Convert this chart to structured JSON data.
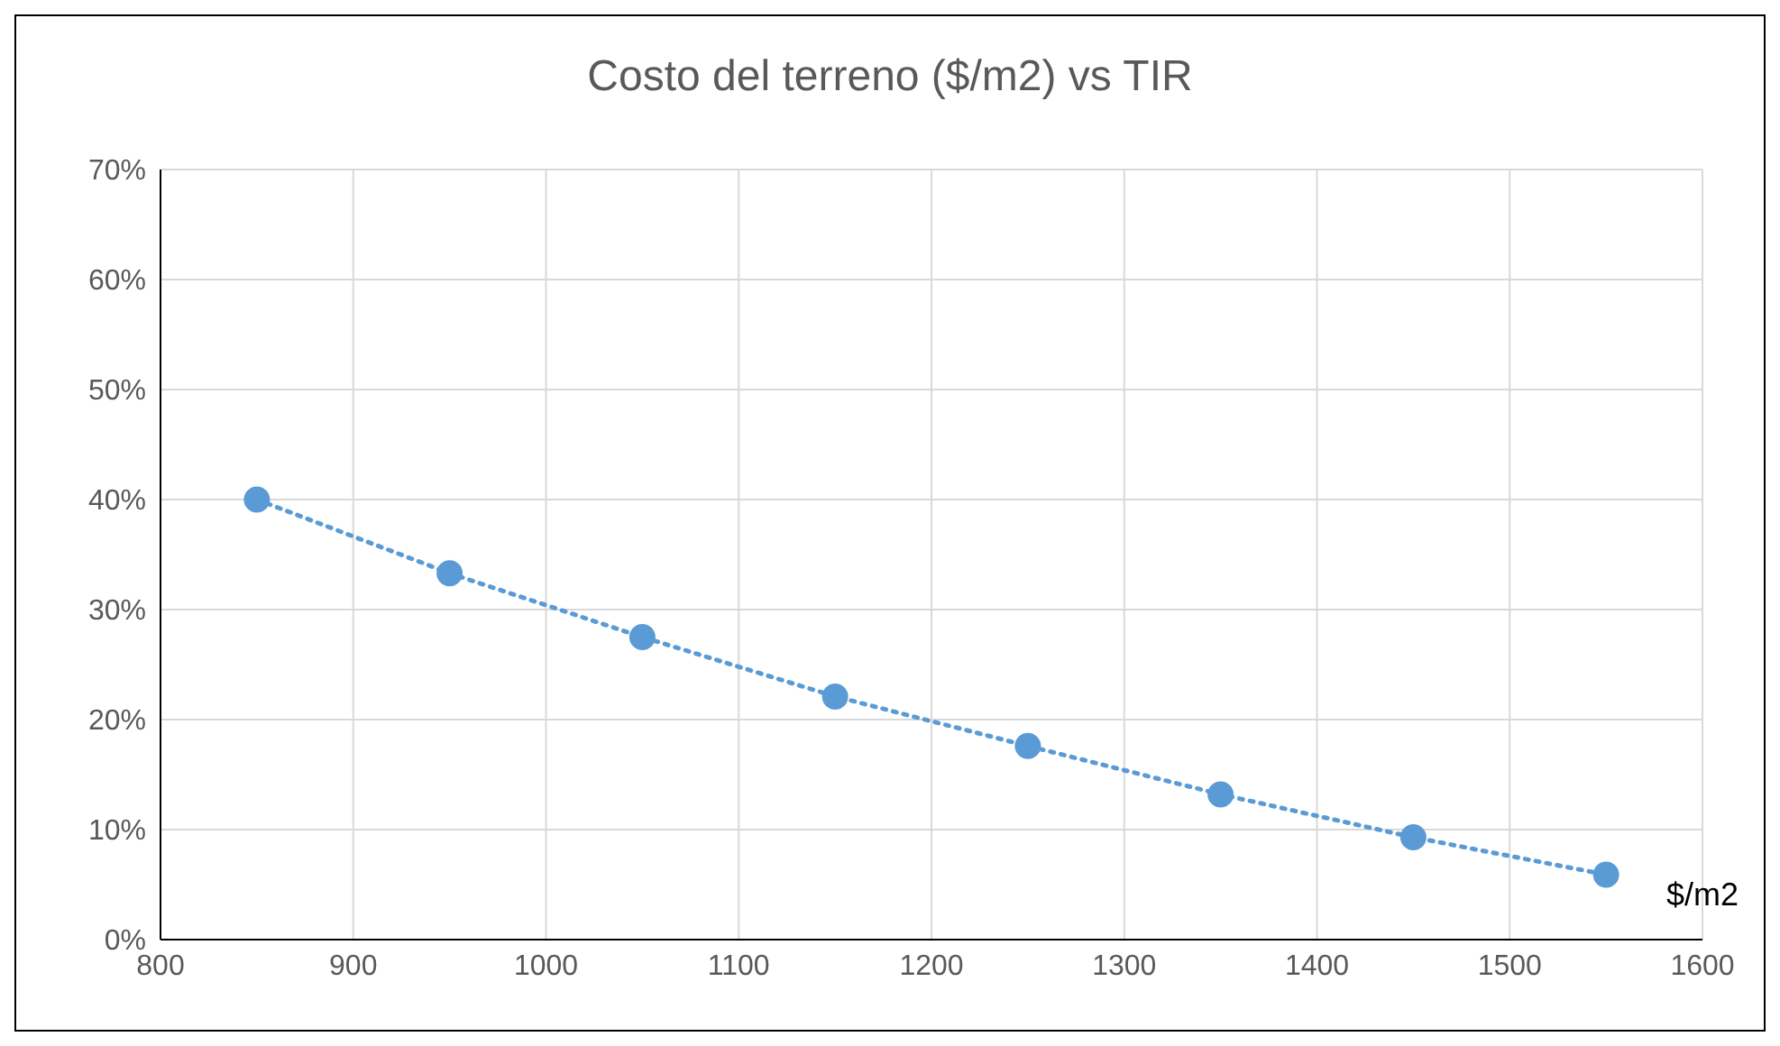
{
  "chart_data": {
    "type": "line",
    "title": "Costo del terreno ($/m2) vs TIR",
    "xlabel": "$/m2",
    "x": [
      850,
      950,
      1050,
      1150,
      1250,
      1350,
      1450,
      1550
    ],
    "series": [
      {
        "color": "#5b9bd5",
        "values": [
          40.0,
          33.3,
          27.5,
          22.1,
          17.6,
          13.2,
          9.3,
          5.9
        ]
      }
    ],
    "xlim": [
      800,
      1600
    ],
    "xticks": [
      800,
      900,
      1000,
      1100,
      1200,
      1300,
      1400,
      1500,
      1600
    ],
    "ylim": [
      0,
      70
    ],
    "yticks": [
      {
        "value": 0,
        "label": "0%"
      },
      {
        "value": 10,
        "label": "10%"
      },
      {
        "value": 20,
        "label": "20%"
      },
      {
        "value": 30,
        "label": "30%"
      },
      {
        "value": 40,
        "label": "40%"
      },
      {
        "value": 50,
        "label": "50%"
      },
      {
        "value": 60,
        "label": "60%"
      },
      {
        "value": 70,
        "label": "70%"
      }
    ],
    "grid": true,
    "marker": "circle",
    "line_style": "dotted",
    "legend": false
  }
}
